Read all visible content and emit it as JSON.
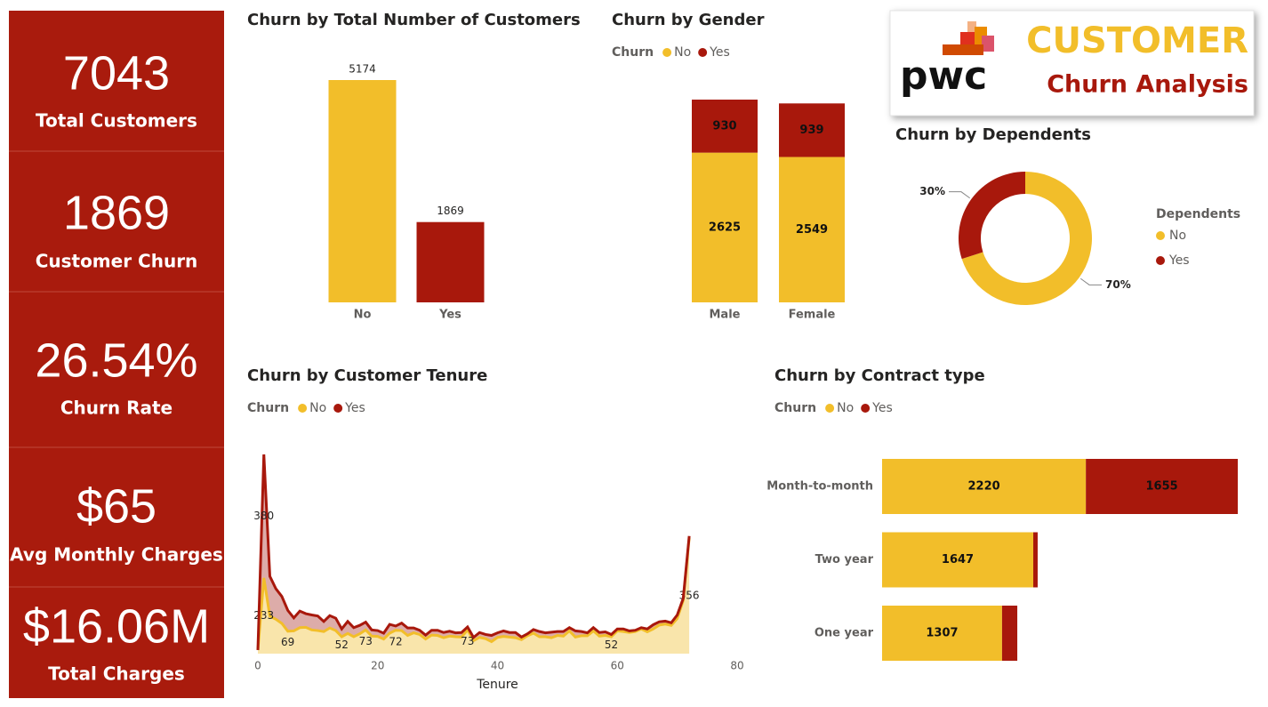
{
  "kpis": [
    {
      "value": "7043",
      "label": "Total Customers"
    },
    {
      "value": "1869",
      "label": "Customer Churn"
    },
    {
      "value": "26.54%",
      "label": "Churn Rate"
    },
    {
      "value": "$65",
      "label": "Avg Monthly Charges"
    },
    {
      "value": "$16.06M",
      "label": "Total Charges"
    }
  ],
  "logo": {
    "brand": "pwc",
    "title": "CUSTOMER",
    "subtitle": "Churn Analysis"
  },
  "chart_data": [
    {
      "type": "bar",
      "title": "Churn by Total Number of Customers",
      "categories": [
        "No",
        "Yes"
      ],
      "values": [
        5174,
        1869
      ],
      "colors": [
        "#f2be2a",
        "#a8180c"
      ]
    },
    {
      "type": "stacked_bar",
      "title": "Churn by Gender",
      "legend_title": "Churn",
      "categories": [
        "Male",
        "Female"
      ],
      "series": [
        {
          "name": "No",
          "color": "#f2be2a",
          "values": [
            2625,
            2549
          ]
        },
        {
          "name": "Yes",
          "color": "#a8180c",
          "values": [
            930,
            939
          ]
        }
      ]
    },
    {
      "type": "donut",
      "title": "Churn by Dependents",
      "legend_title": "Dependents",
      "categories": [
        "No",
        "Yes"
      ],
      "values": [
        70,
        30
      ],
      "value_labels": [
        "70%",
        "30%"
      ],
      "colors": [
        "#f2be2a",
        "#a8180c"
      ]
    },
    {
      "type": "area",
      "title": "Churn by Customer Tenure",
      "legend_title": "Churn",
      "xlabel": "Tenure",
      "xlim": [
        0,
        80
      ],
      "xticks": [
        0,
        20,
        40,
        60,
        80
      ],
      "stacked": true,
      "x": [
        0,
        1,
        2,
        3,
        4,
        5,
        6,
        7,
        8,
        9,
        10,
        11,
        12,
        13,
        14,
        15,
        16,
        17,
        18,
        19,
        20,
        21,
        22,
        23,
        24,
        25,
        26,
        27,
        28,
        29,
        30,
        31,
        32,
        33,
        34,
        35,
        36,
        37,
        38,
        39,
        40,
        41,
        42,
        43,
        44,
        45,
        46,
        47,
        48,
        49,
        50,
        51,
        52,
        53,
        54,
        55,
        56,
        57,
        58,
        59,
        60,
        61,
        62,
        63,
        64,
        65,
        66,
        67,
        68,
        69,
        70,
        71,
        72
      ],
      "series": [
        {
          "name": "No",
          "color": "#f2be2a",
          "fill": "#f8e2a2",
          "values": [
            11,
            233,
            115,
            106,
            93,
            69,
            70,
            80,
            81,
            73,
            71,
            68,
            79,
            71,
            52,
            62,
            52,
            61,
            73,
            54,
            53,
            45,
            63,
            72,
            71,
            56,
            64,
            59,
            45,
            57,
            56,
            49,
            54,
            52,
            51,
            73,
            40,
            50,
            46,
            37,
            50,
            53,
            51,
            49,
            43,
            55,
            63,
            52,
            52,
            49,
            56,
            54,
            70,
            51,
            55,
            55,
            70,
            54,
            56,
            52,
            70,
            68,
            65,
            68,
            76,
            67,
            76,
            88,
            91,
            87,
            108,
            164,
            356
          ],
          "value_labels": [
            null,
            "233",
            null,
            null,
            null,
            "69",
            null,
            null,
            null,
            null,
            null,
            null,
            null,
            null,
            "52",
            null,
            null,
            null,
            "73",
            null,
            null,
            null,
            null,
            "72",
            null,
            null,
            null,
            null,
            null,
            null,
            null,
            null,
            null,
            null,
            null,
            "73",
            null,
            null,
            null,
            null,
            null,
            null,
            null,
            null,
            null,
            null,
            null,
            null,
            null,
            null,
            null,
            null,
            null,
            null,
            null,
            null,
            null,
            null,
            null,
            "52",
            null,
            null,
            null,
            null,
            null,
            null,
            null,
            null,
            null,
            null,
            null,
            null,
            "356"
          ]
        },
        {
          "name": "Yes",
          "color": "#a8180c",
          "fill": "#d9a3a0",
          "values": [
            0,
            380,
            123,
            94,
            83,
            64,
            40,
            51,
            42,
            46,
            45,
            31,
            38,
            38,
            24,
            37,
            28,
            26,
            24,
            19,
            18,
            18,
            27,
            13,
            23,
            23,
            15,
            13,
            12,
            15,
            16,
            16,
            15,
            12,
            14,
            9,
            10,
            15,
            13,
            19,
            14,
            17,
            14,
            16,
            8,
            6,
            11,
            16,
            12,
            17,
            12,
            14,
            10,
            19,
            13,
            9,
            10,
            11,
            11,
            7,
            6,
            8,
            5,
            4,
            4,
            9,
            13,
            10,
            9,
            8,
            11,
            6,
            6
          ],
          "value_labels": [
            null,
            "380",
            null,
            null,
            null,
            null,
            null,
            null,
            null,
            null,
            null,
            null,
            null,
            null,
            null,
            null,
            null,
            null,
            null,
            null,
            null,
            null,
            null,
            null,
            null,
            null,
            null,
            null,
            null,
            null,
            null,
            null,
            null,
            null,
            null,
            null,
            null,
            null,
            null,
            null,
            null,
            null,
            null,
            null,
            null,
            null,
            null,
            null,
            null,
            null,
            null,
            null,
            null,
            null,
            null,
            null,
            null,
            null,
            null,
            null,
            null,
            null,
            null,
            null,
            null,
            null,
            null,
            null,
            null,
            null,
            null,
            null,
            null
          ]
        }
      ]
    },
    {
      "type": "stacked_barh",
      "title": "Churn by Contract type",
      "legend_title": "Churn",
      "categories": [
        "Month-to-month",
        "Two year",
        "One year"
      ],
      "series": [
        {
          "name": "No",
          "color": "#f2be2a",
          "values": [
            2220,
            1647,
            1307
          ]
        },
        {
          "name": "Yes",
          "color": "#a8180c",
          "values": [
            1655,
            48,
            166
          ],
          "value_labels": [
            "1655",
            null,
            null
          ]
        }
      ]
    }
  ]
}
